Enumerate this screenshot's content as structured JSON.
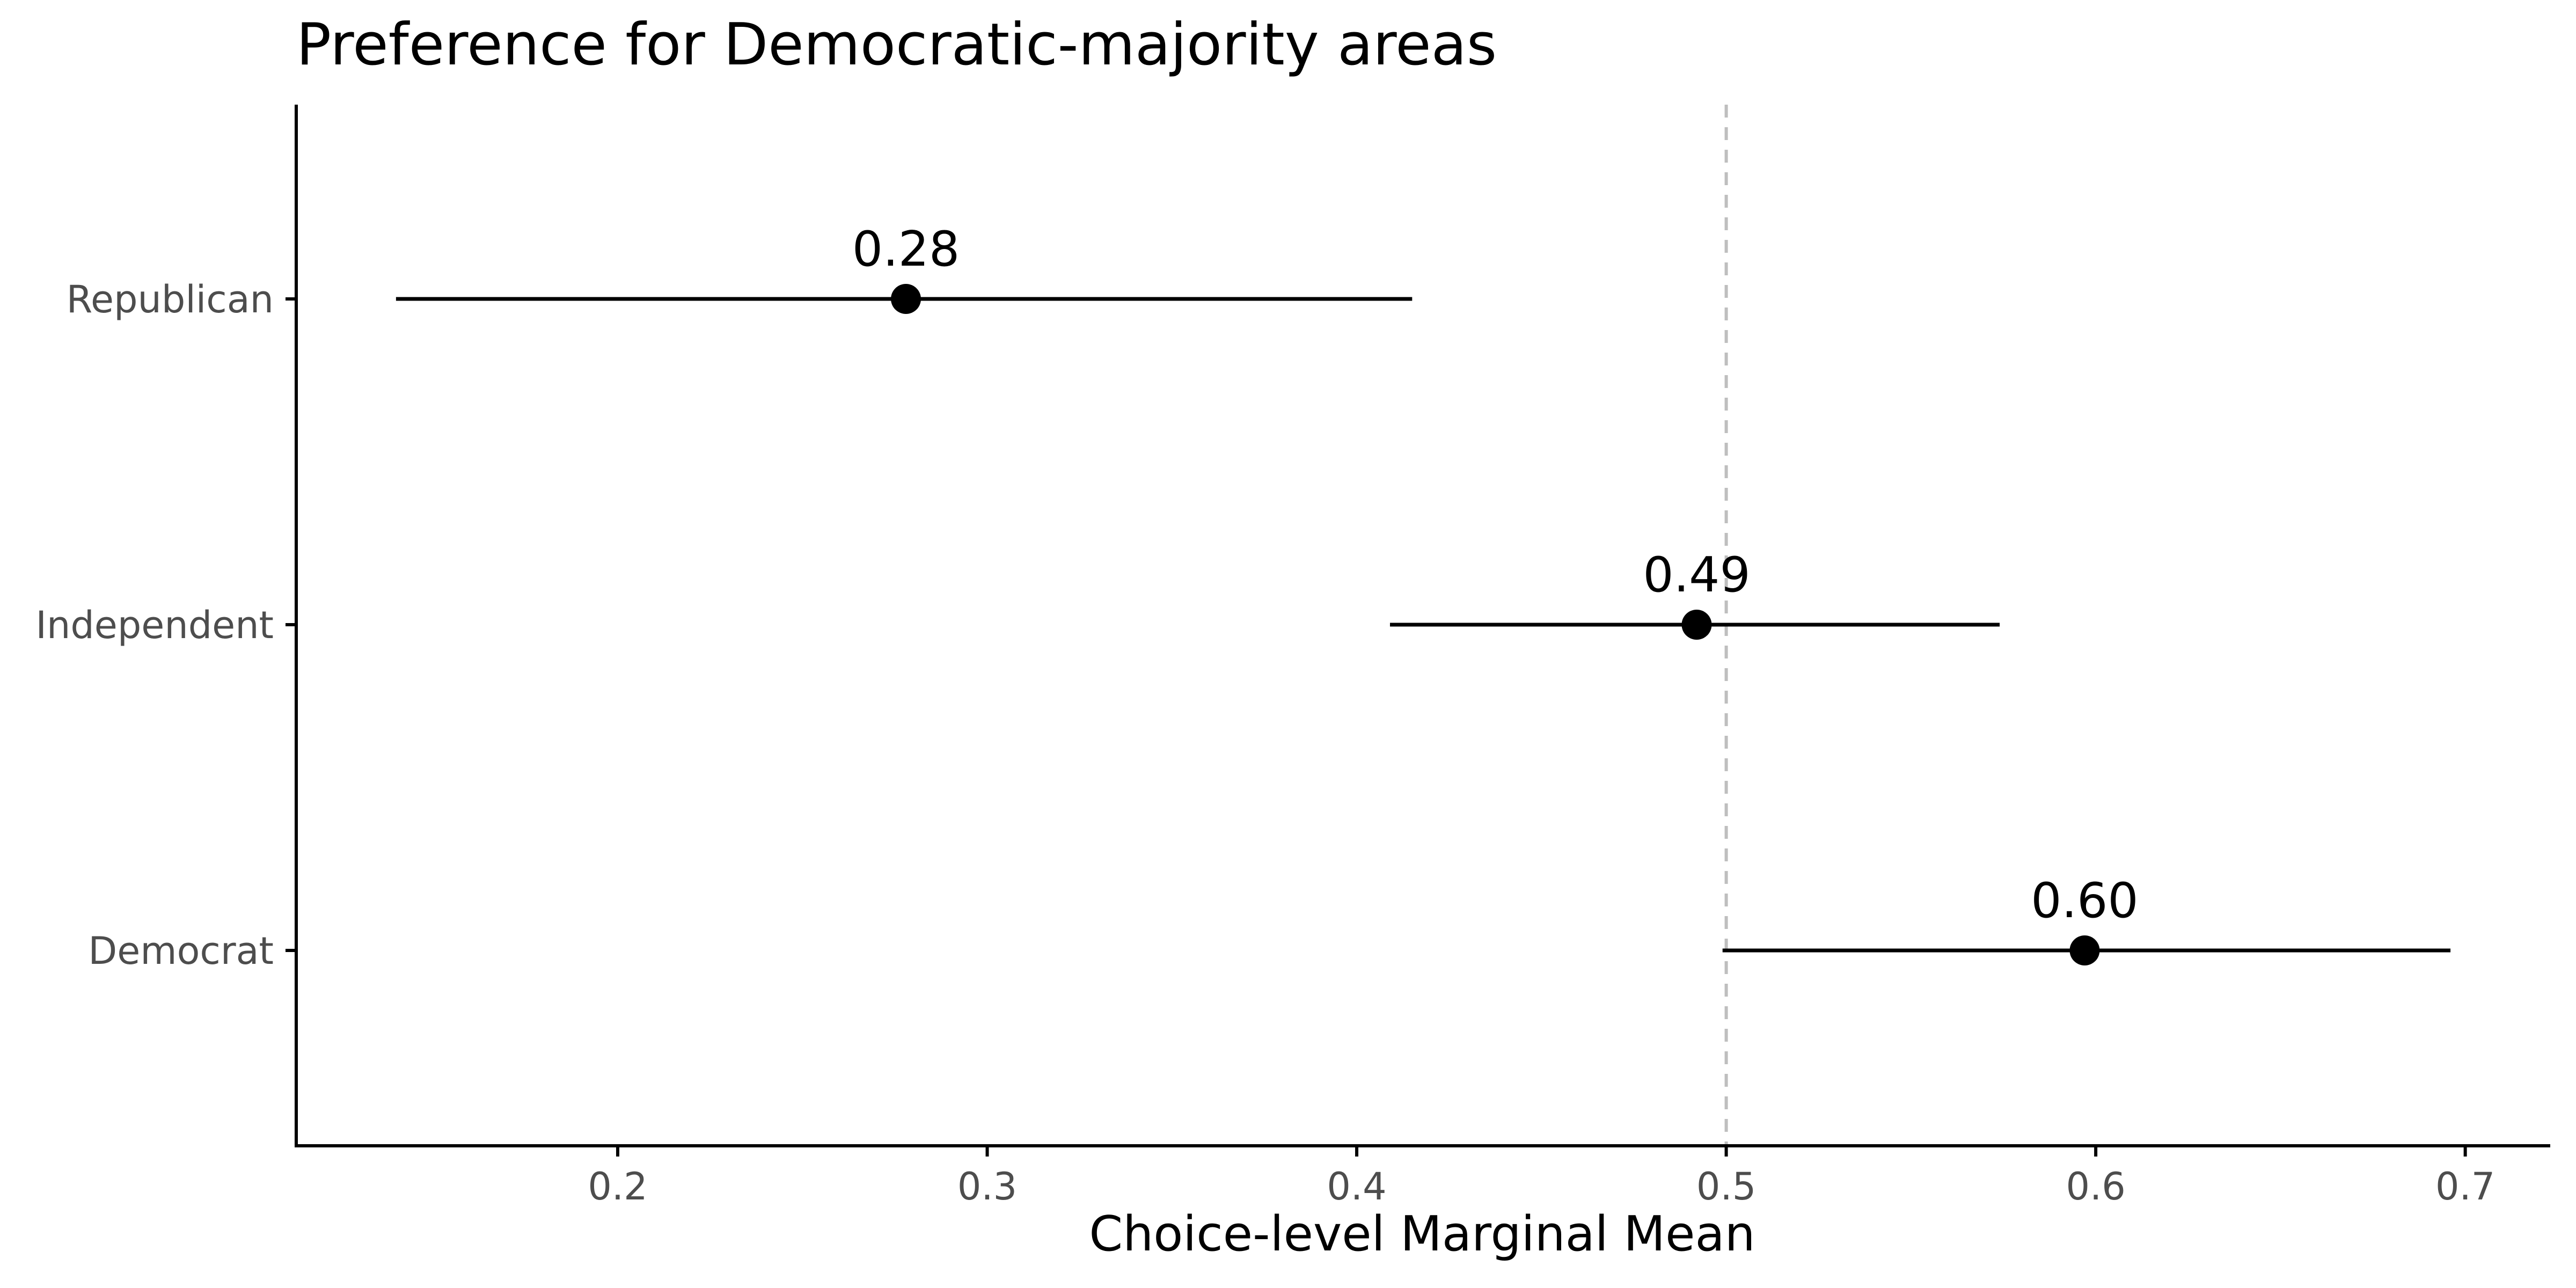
{
  "chart_data": {
    "type": "scatter",
    "title": "Preference for Democratic-majority areas",
    "xlabel": "Choice-level Marginal Mean",
    "ylabel": "",
    "xlim": [
      0.113,
      0.723
    ],
    "xticks": [
      0.2,
      0.3,
      0.4,
      0.5,
      0.6,
      0.7
    ],
    "xtick_labels": [
      "0.2",
      "0.3",
      "0.4",
      "0.5",
      "0.6",
      "0.7"
    ],
    "categories": [
      "Republican",
      "Independent",
      "Democrat"
    ],
    "points": [
      {
        "category": "Republican",
        "value": 0.278,
        "ci_low": 0.14,
        "ci_high": 0.415,
        "label": "0.28"
      },
      {
        "category": "Independent",
        "value": 0.492,
        "ci_low": 0.409,
        "ci_high": 0.574,
        "label": "0.49"
      },
      {
        "category": "Democrat",
        "value": 0.597,
        "ci_low": 0.499,
        "ci_high": 0.696,
        "label": "0.60"
      }
    ],
    "reference_line": {
      "x": 0.5,
      "style": "dashed",
      "color": "#bebebe"
    },
    "grid": false,
    "legend": "none"
  },
  "colors": {
    "axis": "#000000",
    "tick_text": "#4d4d4d",
    "point": "#000000"
  }
}
